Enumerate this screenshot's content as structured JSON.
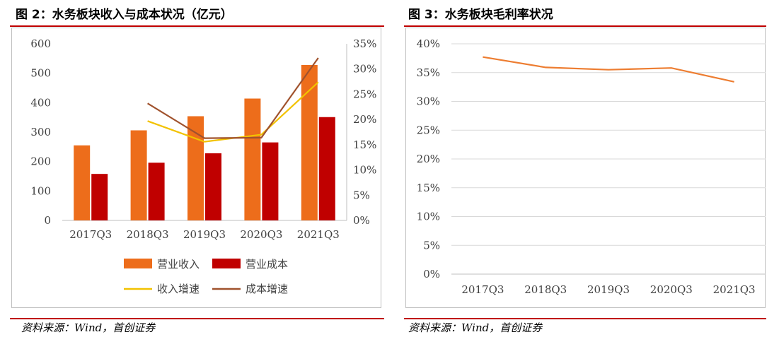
{
  "left": {
    "title": "图 2：水务板块收入与成本状况（亿元）",
    "source": "资料来源：Wind，首创证券"
  },
  "right": {
    "title": "图 3：水务板块毛利率状况",
    "source": "资料来源：Wind，首创证券"
  },
  "colors": {
    "rule": "#c00000",
    "revenue_bar": "#ed6d1b",
    "cost_bar": "#c00000",
    "revenue_growth_line": "#f2c200",
    "cost_growth_line": "#a0522d",
    "margin_line": "#ed7d31"
  },
  "chart_data": [
    {
      "type": "bar",
      "categories": [
        "2017Q3",
        "2018Q3",
        "2019Q3",
        "2020Q3",
        "2021Q3"
      ],
      "ylim": [
        0,
        600
      ],
      "yticks": [
        0,
        100,
        200,
        300,
        400,
        500,
        600
      ],
      "y2lim": [
        0,
        35
      ],
      "y2ticks": [
        "0%",
        "5%",
        "10%",
        "15%",
        "20%",
        "25%",
        "30%",
        "35%"
      ],
      "series": [
        {
          "name": "营业收入",
          "kind": "bar",
          "axis": "left",
          "values": [
            255,
            306,
            354,
            414,
            528
          ]
        },
        {
          "name": "营业成本",
          "kind": "bar",
          "axis": "left",
          "values": [
            158,
            196,
            228,
            265,
            351
          ]
        },
        {
          "name": "收入增速",
          "kind": "line",
          "axis": "right",
          "values": [
            null,
            19.7,
            15.6,
            17.0,
            27.4
          ]
        },
        {
          "name": "成本增速",
          "kind": "line",
          "axis": "right",
          "values": [
            null,
            23.2,
            16.3,
            16.4,
            32.2
          ]
        }
      ],
      "legend_position": "bottom"
    },
    {
      "type": "line",
      "categories": [
        "2017Q3",
        "2018Q3",
        "2019Q3",
        "2020Q3",
        "2021Q3"
      ],
      "ylim": [
        0,
        40
      ],
      "yticks": [
        "0%",
        "5%",
        "10%",
        "15%",
        "20%",
        "25%",
        "30%",
        "35%",
        "40%"
      ],
      "series": [
        {
          "kind": "line",
          "values": [
            37.7,
            35.9,
            35.5,
            35.8,
            33.4
          ]
        }
      ],
      "grid": true
    }
  ]
}
